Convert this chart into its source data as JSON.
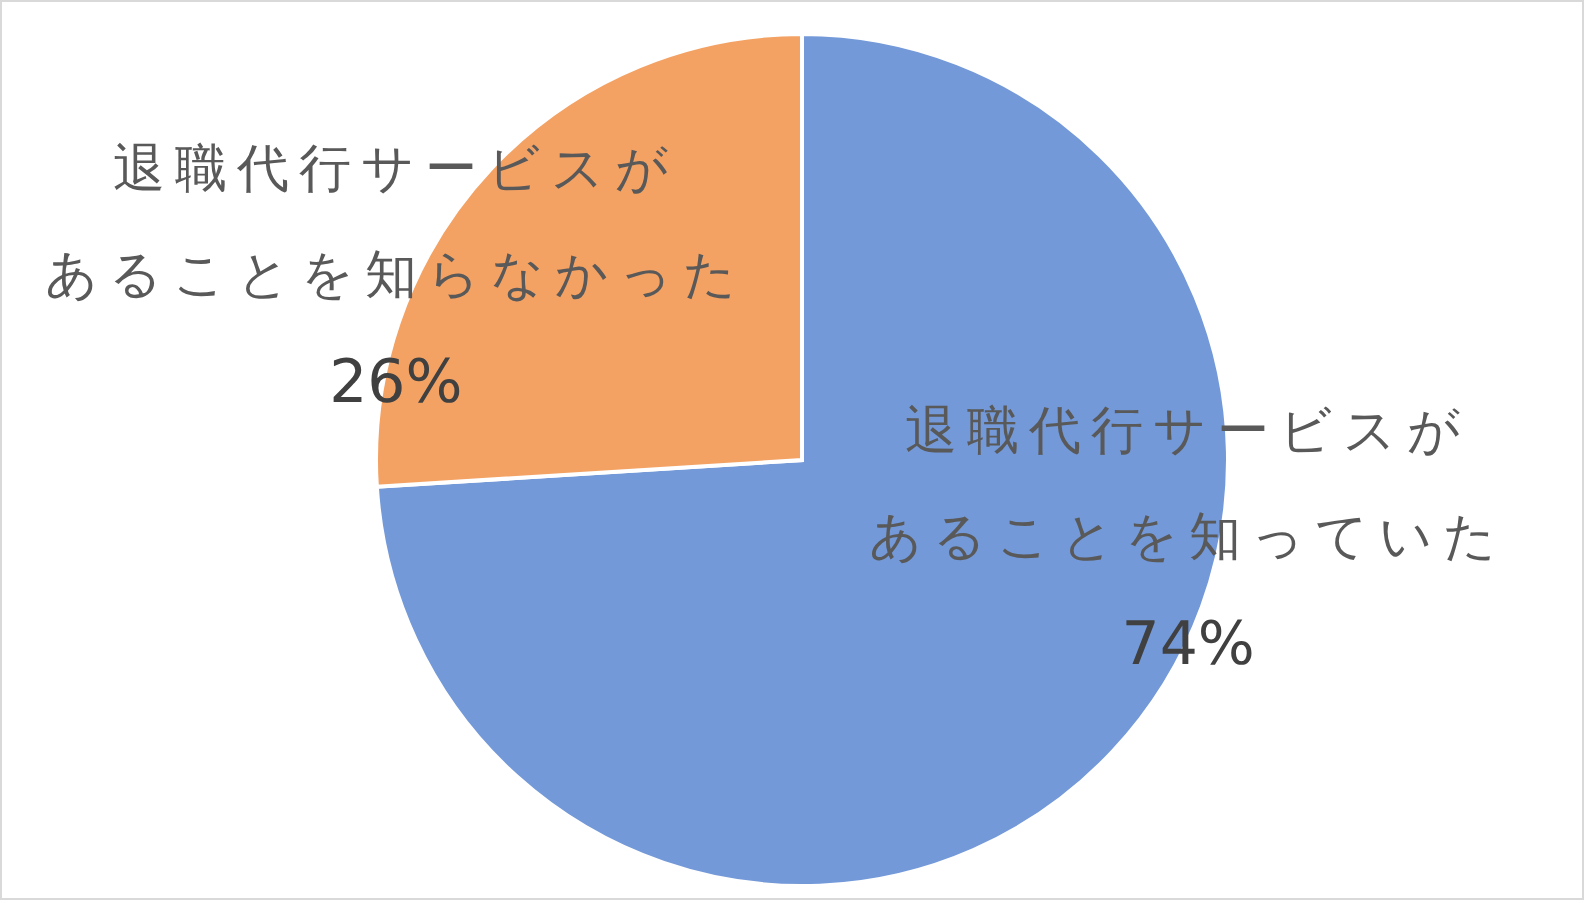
{
  "chart_data": {
    "type": "pie",
    "categories": [
      "退職代行サービスがあることを知っていた",
      "退職代行サービスがあることを知らなかった"
    ],
    "values": [
      74,
      26
    ],
    "colors": [
      "#7399d8",
      "#f3a264"
    ],
    "value_labels": [
      "74%",
      "26%"
    ],
    "legend": false
  }
}
